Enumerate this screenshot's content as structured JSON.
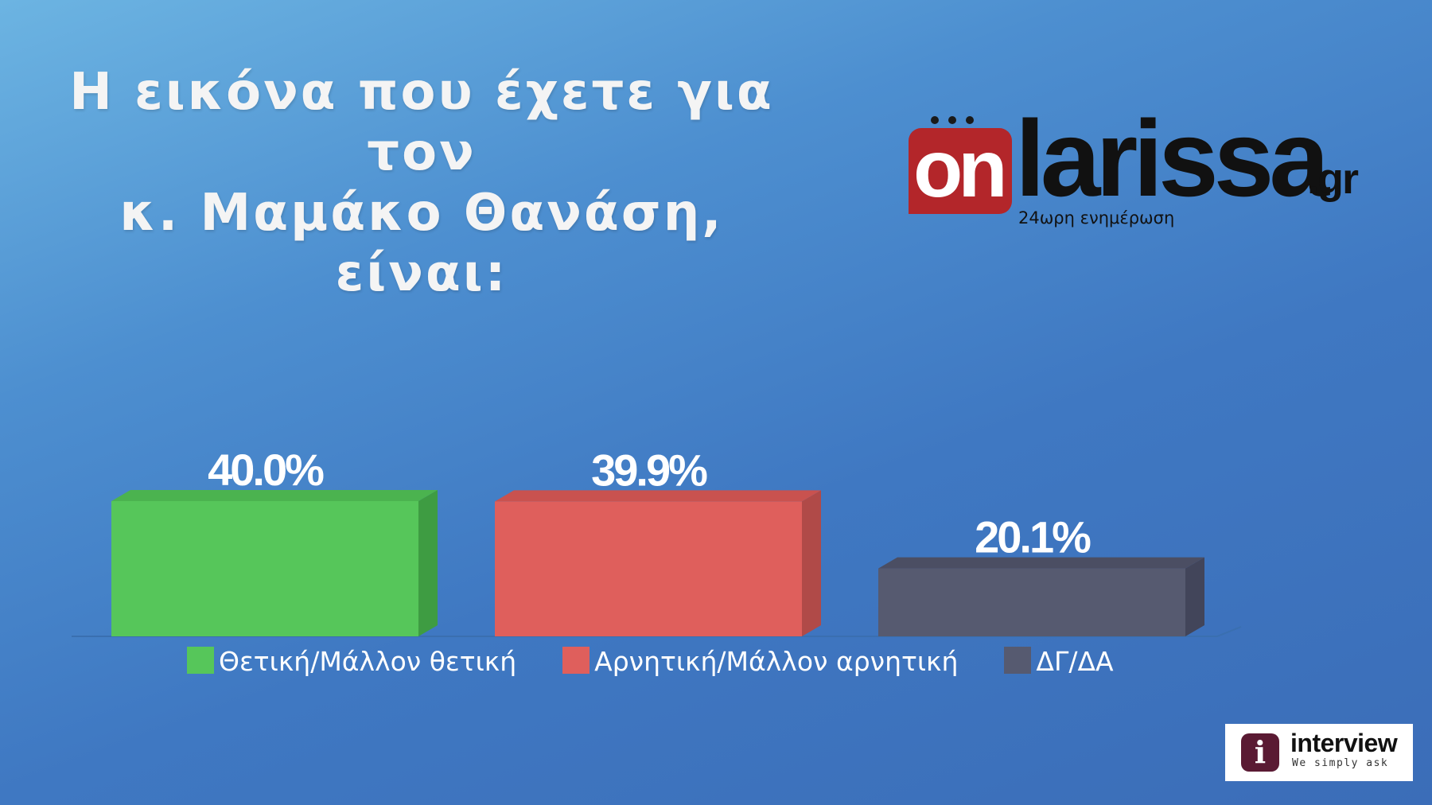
{
  "title": {
    "line1": "Η εικόνα που έχετε για τον",
    "line2": "κ. Μαμάκο Θανάση, είναι:"
  },
  "logo": {
    "on": "on",
    "larissa": "larissa",
    "gr": ".gr",
    "tagline": "24ωρη ενημέρωση"
  },
  "pollster": {
    "name": "interview",
    "tagline": "We simply ask",
    "icon": "info-icon"
  },
  "chart_data": {
    "type": "bar",
    "style": "3d",
    "categories": [
      "Θετική/Μάλλον θετική",
      "Αρνητική/Μάλλον αρνητική",
      "ΔΓ/ΔΑ"
    ],
    "values": [
      40.0,
      39.9,
      20.1
    ],
    "value_labels": [
      "40.0%",
      "39.9%",
      "20.1%"
    ],
    "colors": [
      "#56c65a",
      "#df5f5c",
      "#565a70"
    ],
    "side_colors": [
      "#3e9c42",
      "#b04a48",
      "#42455a"
    ],
    "top_colors": [
      "#4bb34f",
      "#c9524f",
      "#4b4e63"
    ],
    "ylim": [
      0,
      40
    ],
    "legend_position": "bottom",
    "grid": false
  }
}
